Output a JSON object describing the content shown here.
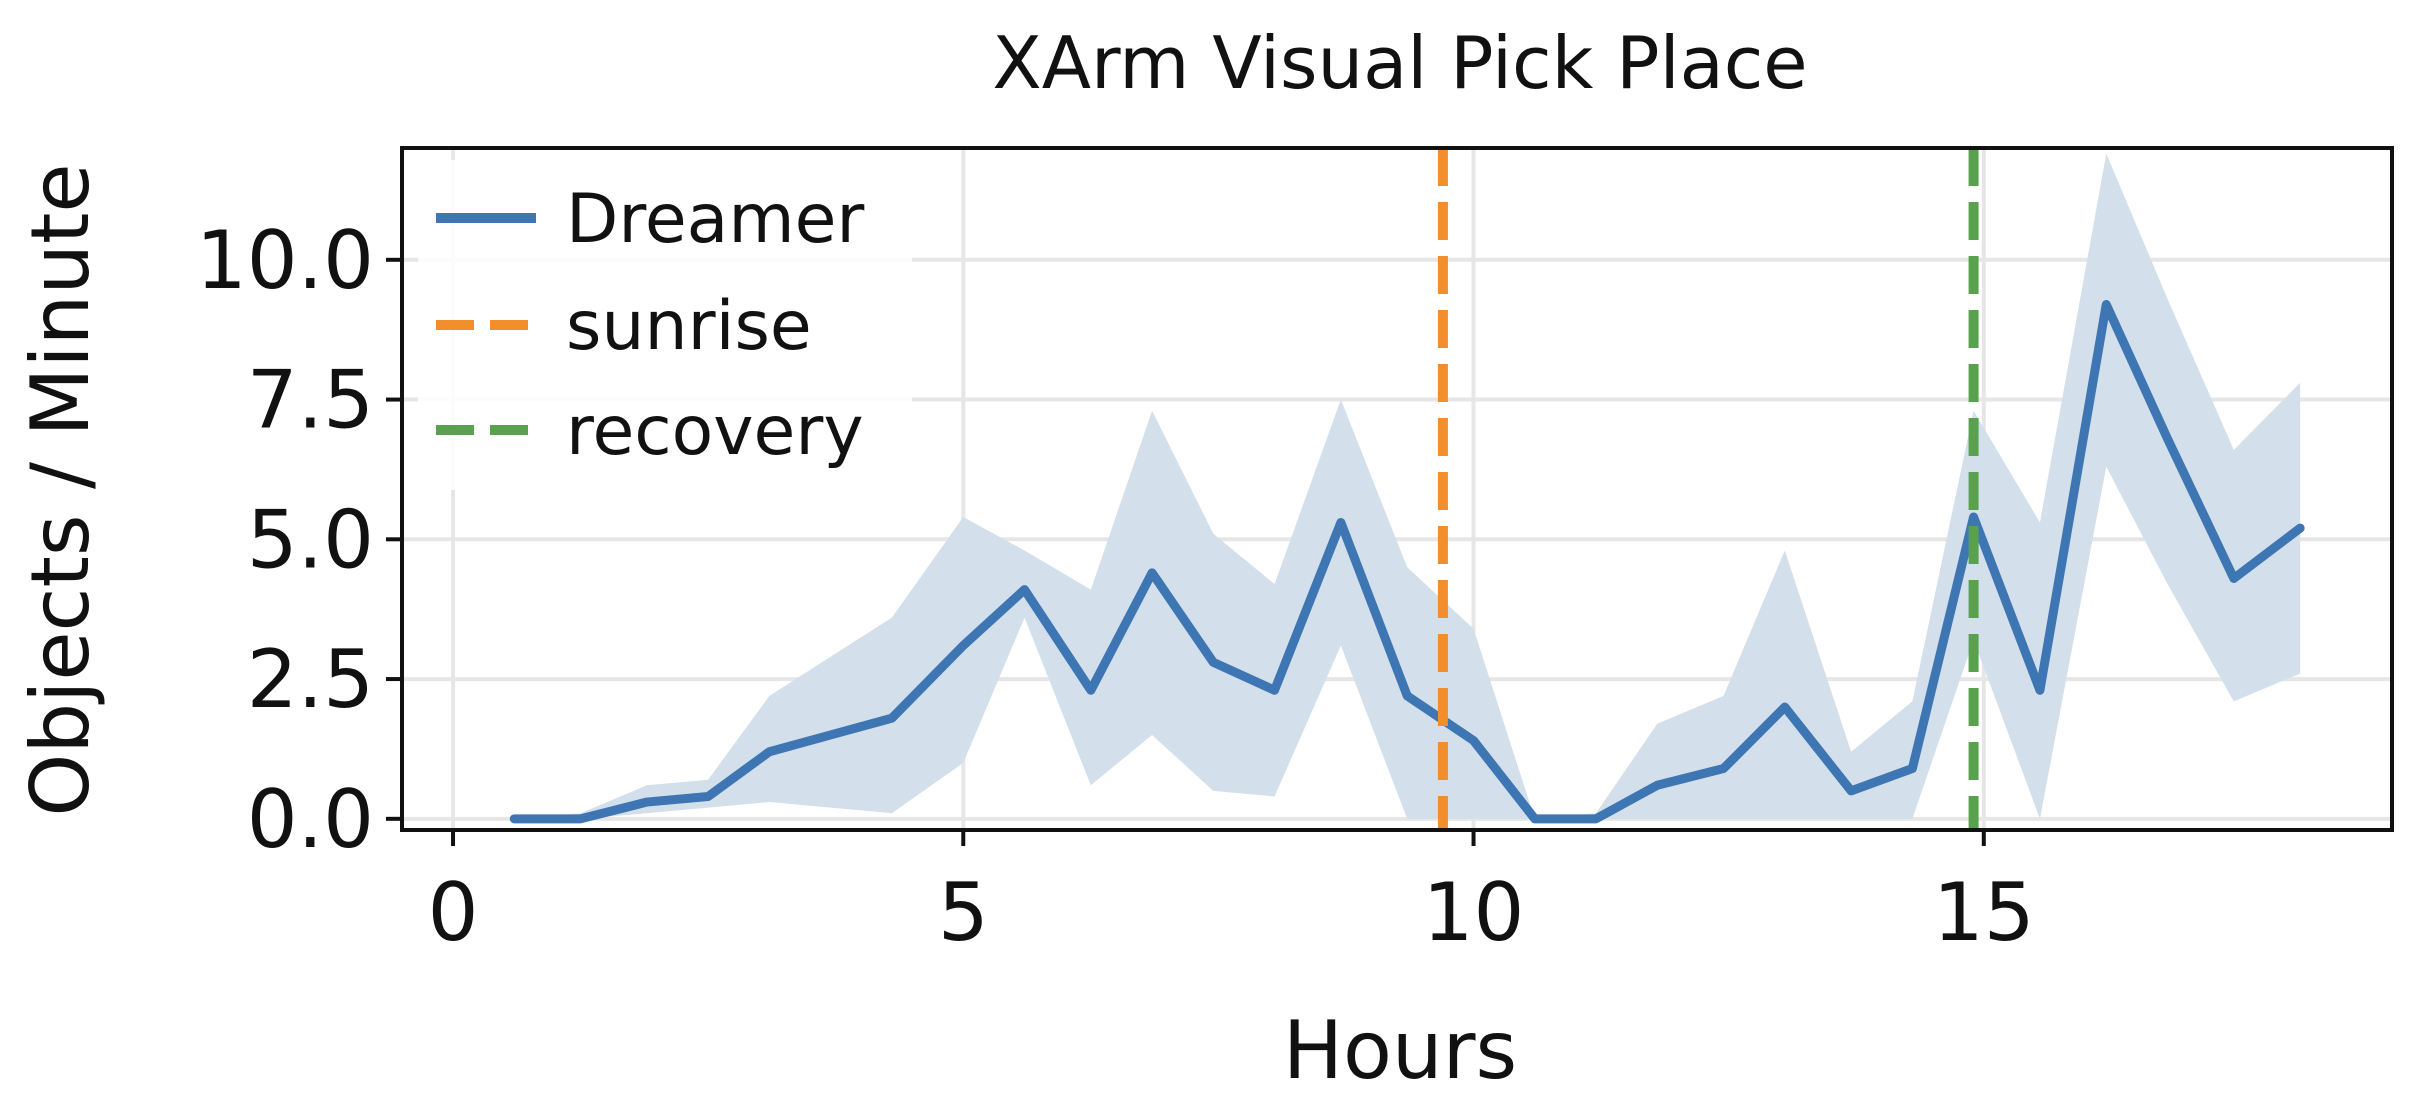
{
  "chart_data": {
    "type": "line",
    "title": "XArm Visual Pick Place",
    "xlabel": "Hours",
    "ylabel": "Objects / Minute",
    "xlim": [
      -0.5,
      19.0
    ],
    "ylim": [
      -0.2,
      12.0
    ],
    "xticks": [
      0,
      5,
      10,
      15
    ],
    "xtick_labels": [
      "0",
      "5",
      "10",
      "15"
    ],
    "yticks": [
      0.0,
      2.5,
      5.0,
      7.5,
      10.0
    ],
    "ytick_labels": [
      "0.0",
      "2.5",
      "5.0",
      "7.5",
      "10.0"
    ],
    "grid": true,
    "legend_position": "upper-left",
    "series": [
      {
        "name": "Dreamer",
        "color": "#3d76b3",
        "band_color": "#d3dfeb",
        "x": [
          0.6,
          1.25,
          1.9,
          2.5,
          3.1,
          3.7,
          4.3,
          5.0,
          5.6,
          6.25,
          6.85,
          7.45,
          8.05,
          8.7,
          9.35,
          10.0,
          10.6,
          11.2,
          11.8,
          12.45,
          13.05,
          13.7,
          14.3,
          14.9,
          15.55,
          16.2,
          16.8,
          17.45,
          18.1
        ],
        "y": [
          0.0,
          0.0,
          0.3,
          0.4,
          1.2,
          1.5,
          1.8,
          3.1,
          4.1,
          2.3,
          4.4,
          2.8,
          2.3,
          5.3,
          2.2,
          1.4,
          0.0,
          0.0,
          0.6,
          0.9,
          2.0,
          0.5,
          0.9,
          5.4,
          2.3,
          9.2,
          6.8,
          4.3,
          5.2
        ],
        "y_lower": [
          0.0,
          0.0,
          0.1,
          0.2,
          0.3,
          0.2,
          0.1,
          1.0,
          3.6,
          0.6,
          1.5,
          0.5,
          0.4,
          3.1,
          0.0,
          0.0,
          0.0,
          0.0,
          0.0,
          0.0,
          0.0,
          0.0,
          0.0,
          3.2,
          0.0,
          6.3,
          4.2,
          2.1,
          2.6
        ],
        "y_upper": [
          0.0,
          0.1,
          0.6,
          0.7,
          2.2,
          2.9,
          3.6,
          5.4,
          4.8,
          4.1,
          7.3,
          5.1,
          4.2,
          7.5,
          4.5,
          3.4,
          0.0,
          0.1,
          1.7,
          2.2,
          4.8,
          1.2,
          2.1,
          7.3,
          5.3,
          11.9,
          9.3,
          6.6,
          7.8
        ]
      }
    ],
    "vlines": [
      {
        "name": "sunrise",
        "x": 9.7,
        "color": "#f28e2b",
        "style": "dashed"
      },
      {
        "name": "recovery",
        "x": 14.9,
        "color": "#59a14f",
        "style": "dashed"
      }
    ]
  }
}
